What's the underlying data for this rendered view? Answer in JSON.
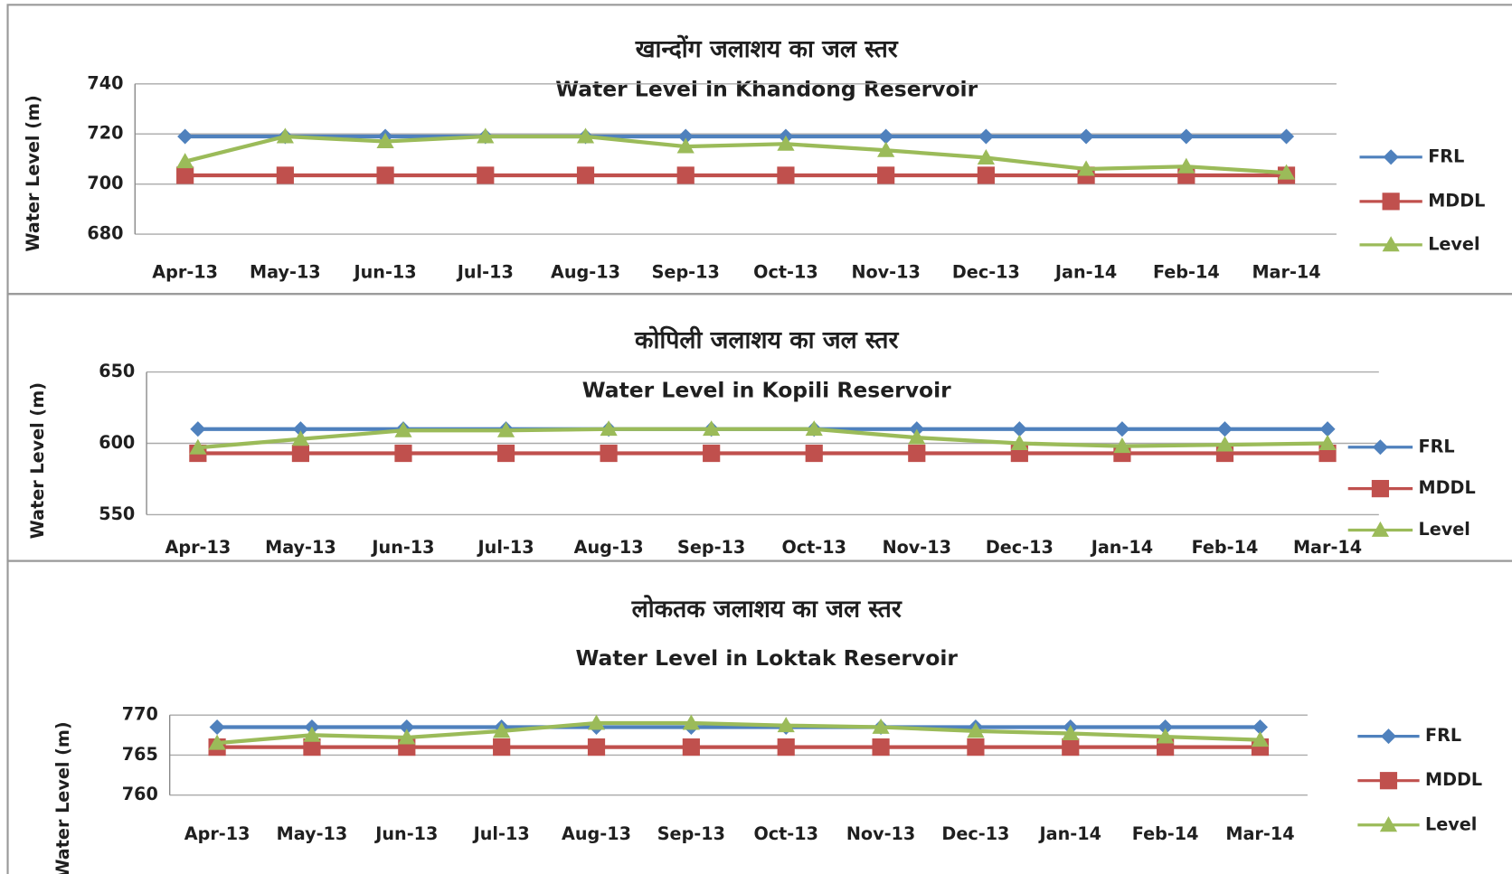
{
  "chart_data": [
    {
      "type": "line",
      "title": "खान्दोंग जलाशय का जल स्तर",
      "subtitle": "Water Level in Khandong Reservoir",
      "y_label": "Water Level (m)",
      "categories": [
        "Apr-13",
        "May-13",
        "Jun-13",
        "Jul-13",
        "Aug-13",
        "Sep-13",
        "Oct-13",
        "Nov-13",
        "Dec-13",
        "Jan-14",
        "Feb-14",
        "Mar-14"
      ],
      "series": [
        {
          "name": "FRL",
          "color": "#4f81bd",
          "marker": "diamond",
          "values": [
            719,
            719,
            719,
            719,
            719,
            719,
            719,
            719,
            719,
            719,
            719,
            719
          ]
        },
        {
          "name": "MDDL",
          "color": "#c0504d",
          "marker": "square",
          "values": [
            703.5,
            703.5,
            703.5,
            703.5,
            703.5,
            703.5,
            703.5,
            703.5,
            703.5,
            703.5,
            703.5,
            703.5
          ]
        },
        {
          "name": "Level",
          "color": "#9bbb59",
          "marker": "triangle",
          "values": [
            709,
            719,
            717,
            719,
            719,
            715,
            716,
            713.5,
            710.5,
            706,
            707,
            704.5
          ]
        }
      ],
      "ylim": [
        680,
        740
      ],
      "yticks": [
        680,
        700,
        720,
        740
      ],
      "grid": true
    },
    {
      "type": "line",
      "title": "कोपिली जलाशय का जल स्तर",
      "subtitle": "Water Level in Kopili Reservoir",
      "y_label": "Water Level (m)",
      "categories": [
        "Apr-13",
        "May-13",
        "Jun-13",
        "Jul-13",
        "Aug-13",
        "Sep-13",
        "Oct-13",
        "Nov-13",
        "Dec-13",
        "Jan-14",
        "Feb-14",
        "Mar-14"
      ],
      "series": [
        {
          "name": "FRL",
          "color": "#4f81bd",
          "marker": "diamond",
          "values": [
            610,
            610,
            610,
            610,
            610,
            610,
            610,
            610,
            610,
            610,
            610,
            610
          ]
        },
        {
          "name": "MDDL",
          "color": "#c0504d",
          "marker": "square",
          "values": [
            593,
            593,
            593,
            593,
            593,
            593,
            593,
            593,
            593,
            593,
            593,
            593
          ]
        },
        {
          "name": "Level",
          "color": "#9bbb59",
          "marker": "triangle",
          "values": [
            597,
            603,
            609,
            609,
            610,
            610,
            610,
            604,
            600,
            598,
            599,
            600
          ]
        }
      ],
      "ylim": [
        550,
        650
      ],
      "yticks": [
        550,
        600,
        650
      ],
      "grid": true
    },
    {
      "type": "line",
      "title": "लोकतक जलाशय का जल स्तर",
      "subtitle": "Water Level in Loktak Reservoir",
      "y_label": "Water Level (m)",
      "categories": [
        "Apr-13",
        "May-13",
        "Jun-13",
        "Jul-13",
        "Aug-13",
        "Sep-13",
        "Oct-13",
        "Nov-13",
        "Dec-13",
        "Jan-14",
        "Feb-14",
        "Mar-14"
      ],
      "series": [
        {
          "name": "FRL",
          "color": "#4f81bd",
          "marker": "diamond",
          "values": [
            768.5,
            768.5,
            768.5,
            768.5,
            768.5,
            768.5,
            768.5,
            768.5,
            768.5,
            768.5,
            768.5,
            768.5
          ]
        },
        {
          "name": "MDDL",
          "color": "#c0504d",
          "marker": "square",
          "values": [
            766,
            766,
            766,
            766,
            766,
            766,
            766,
            766,
            766,
            766,
            766,
            766
          ]
        },
        {
          "name": "Level",
          "color": "#9bbb59",
          "marker": "triangle",
          "values": [
            766.5,
            767.5,
            767.2,
            768,
            769,
            769,
            768.7,
            768.5,
            768,
            767.7,
            767.3,
            766.9
          ]
        }
      ],
      "ylim": [
        760,
        770
      ],
      "yticks": [
        760,
        765,
        770
      ],
      "grid": true
    }
  ]
}
